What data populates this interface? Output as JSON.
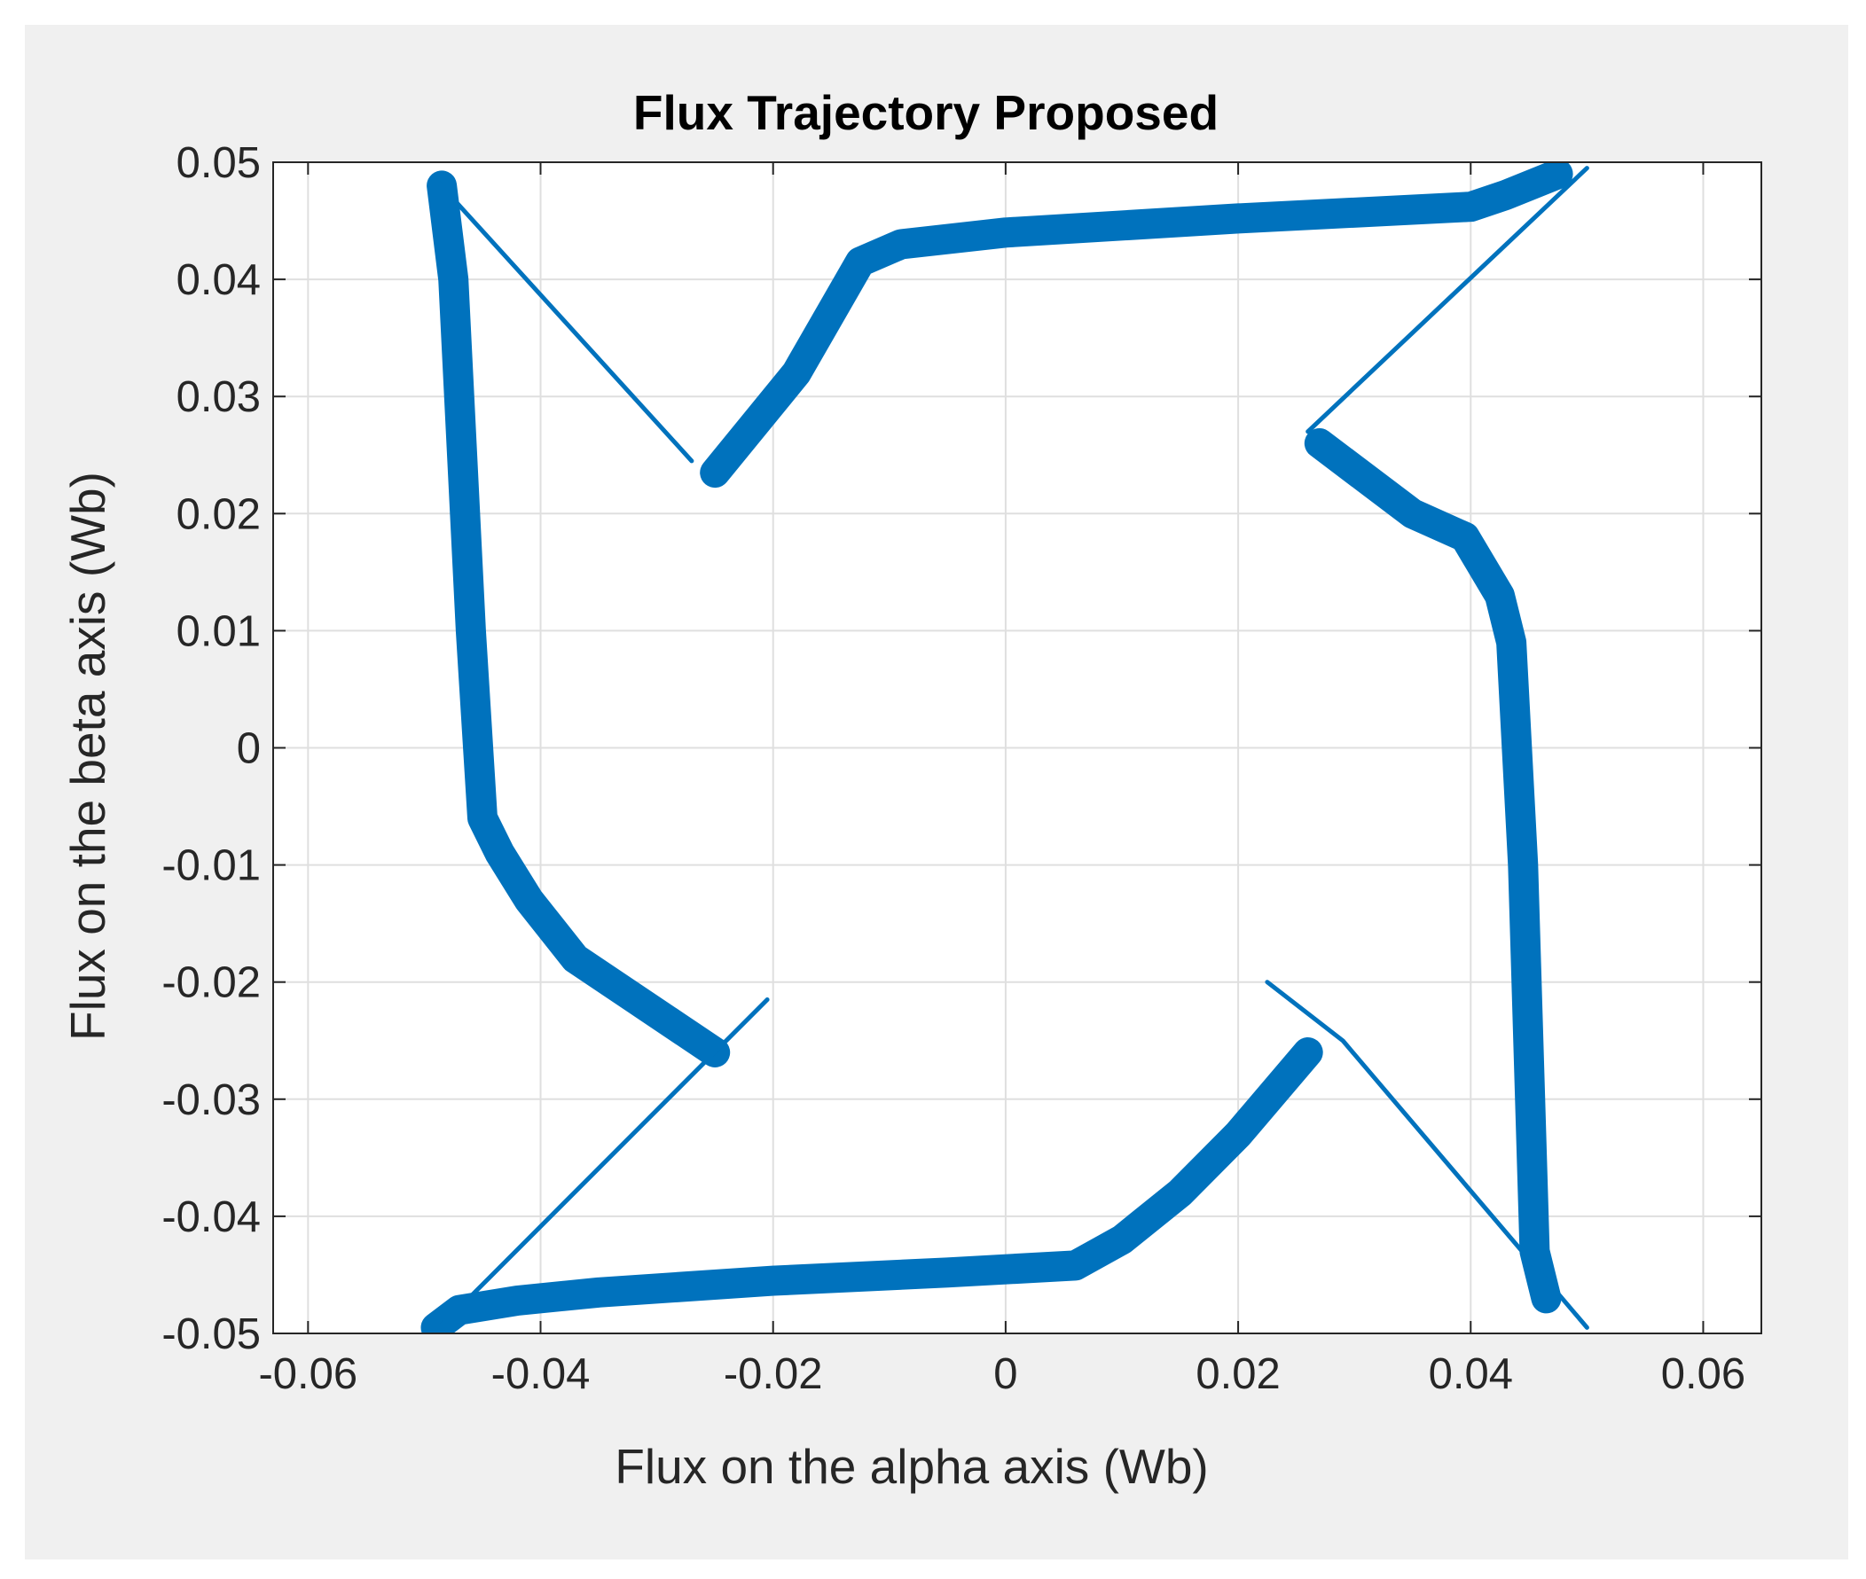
{
  "chart_data": {
    "type": "line",
    "title": "Flux Trajectory Proposed",
    "xlabel": "Flux on the alpha axis (Wb)",
    "ylabel": "Flux on the beta axis (Wb)",
    "xlim": [
      -0.063,
      0.065
    ],
    "ylim": [
      -0.05,
      0.05
    ],
    "xticks": [
      -0.06,
      -0.04,
      -0.02,
      0,
      0.02,
      0.04,
      0.06
    ],
    "xtick_labels": [
      "-0.06",
      "-0.04",
      "-0.02",
      "0",
      "0.02",
      "0.04",
      "0.06"
    ],
    "yticks": [
      -0.05,
      -0.04,
      -0.03,
      -0.02,
      -0.01,
      0,
      0.01,
      0.02,
      0.03,
      0.04,
      0.05
    ],
    "ytick_labels": [
      "-0.05",
      "-0.04",
      "-0.03",
      "-0.02",
      "-0.01",
      "0",
      "0.01",
      "0.02",
      "0.03",
      "0.04",
      "0.05"
    ],
    "grid": true,
    "line_color": "#0072BD",
    "series": [
      {
        "style": "thick",
        "x": [
          -0.0485,
          -0.0475,
          -0.046,
          -0.045,
          -0.0435,
          -0.041,
          -0.037,
          -0.031,
          -0.025
        ],
        "y": [
          0.048,
          0.04,
          0.01,
          -0.006,
          -0.009,
          -0.013,
          -0.018,
          -0.022,
          -0.026
        ]
      },
      {
        "style": "thick",
        "x": [
          -0.049,
          -0.047,
          -0.042,
          -0.035,
          -0.02,
          -0.005,
          0.006,
          0.01,
          0.015,
          0.02,
          0.026
        ],
        "y": [
          -0.0495,
          -0.048,
          -0.0472,
          -0.0465,
          -0.0455,
          -0.0448,
          -0.0442,
          -0.042,
          -0.038,
          -0.033,
          -0.026
        ]
      },
      {
        "style": "thick",
        "x": [
          0.0465,
          0.0455,
          0.0445,
          0.0435,
          0.0425,
          0.0395,
          0.035,
          0.031,
          0.027
        ],
        "y": [
          -0.047,
          -0.043,
          -0.01,
          0.009,
          0.013,
          0.018,
          0.02,
          0.023,
          0.026
        ]
      },
      {
        "style": "thick",
        "x": [
          -0.025,
          -0.018,
          -0.0125,
          -0.009,
          0.0,
          0.02,
          0.04,
          0.043,
          0.0475
        ],
        "y": [
          0.0235,
          0.032,
          0.0415,
          0.043,
          0.044,
          0.0452,
          0.0462,
          0.0472,
          0.049
        ]
      },
      {
        "style": "thin",
        "x": [
          -0.049,
          -0.027
        ],
        "y": [
          0.0485,
          0.0245
        ]
      },
      {
        "style": "thin",
        "x": [
          -0.0495,
          -0.0205
        ],
        "y": [
          -0.0503,
          -0.0215
        ]
      },
      {
        "style": "thin",
        "x": [
          0.0225,
          0.029,
          0.05
        ],
        "y": [
          -0.02,
          -0.025,
          -0.0495
        ]
      },
      {
        "style": "thin",
        "x": [
          0.026,
          0.05
        ],
        "y": [
          0.027,
          0.0495
        ]
      }
    ]
  }
}
